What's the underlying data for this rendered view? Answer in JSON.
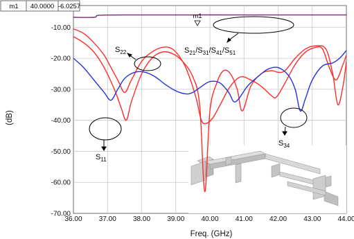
{
  "chart_data": {
    "type": "line",
    "xlabel": "Freq. (GHz)",
    "ylabel": "(dB)",
    "xlim": [
      36,
      44
    ],
    "ylim": [
      -70,
      -3
    ],
    "xticks": [
      "36.00",
      "37.00",
      "38.00",
      "39.00",
      "40.00",
      "41.00",
      "42.00",
      "43.00",
      "44.00"
    ],
    "yticks": [
      "-10.00",
      "-20.00",
      "-30.00",
      "-40.00",
      "-50.00",
      "-60.00",
      "-70.00"
    ],
    "ytick_values": [
      -10,
      -20,
      -30,
      -40,
      -50,
      -60,
      -70
    ],
    "grid": true,
    "marker": {
      "name": "m1",
      "x": "40.0000",
      "y": "-6.0257",
      "x_value": 40.0,
      "y_value": -6.0257
    },
    "series": [
      {
        "color": "#ff2a2a",
        "x": [
          36.0,
          36.3,
          36.6,
          36.9,
          37.2,
          37.4,
          37.55,
          37.7,
          38.0,
          38.3,
          38.6,
          38.9,
          39.2,
          39.5,
          39.7,
          39.85,
          40.0,
          40.2,
          40.4,
          40.6,
          40.8,
          40.95,
          41.2,
          41.5,
          41.8,
          42.0,
          42.2,
          42.5,
          42.8,
          43.1,
          43.4,
          43.6,
          43.75,
          43.9,
          44.0
        ],
        "y": [
          -13,
          -15,
          -18,
          -23,
          -30,
          -36,
          -40,
          -34,
          -25,
          -20,
          -18,
          -18.5,
          -21,
          -26,
          -35,
          -63,
          -37,
          -28,
          -24,
          -25,
          -30,
          -37,
          -29,
          -25,
          -24,
          -24.5,
          -24,
          -20,
          -17,
          -16,
          -17,
          -25,
          -35,
          -29,
          -21
        ]
      },
      {
        "color": "#ff2a2a",
        "x": [
          36.0,
          36.3,
          36.6,
          36.9,
          37.1,
          37.3,
          37.5,
          37.7,
          38.0,
          38.3,
          38.6,
          38.9,
          39.2,
          39.4,
          39.6,
          39.75,
          39.9,
          40.1,
          40.3,
          40.6,
          40.9,
          41.2,
          41.5,
          41.8,
          41.95,
          42.2,
          42.5,
          42.8,
          43.1,
          43.3,
          43.5,
          43.7,
          43.9,
          44.0
        ],
        "y": [
          -10.5,
          -12,
          -15,
          -19,
          -23,
          -27,
          -31,
          -27,
          -21,
          -18,
          -16.5,
          -17,
          -21,
          -26,
          -33,
          -40,
          -41,
          -39,
          -35,
          -29,
          -26,
          -27,
          -29,
          -32,
          -32.5,
          -28,
          -22,
          -18,
          -16.5,
          -17,
          -23,
          -27,
          -22,
          -19
        ]
      },
      {
        "color": "#2233dd",
        "x": [
          36.0,
          36.3,
          36.6,
          36.9,
          37.1,
          37.3,
          37.5,
          37.8,
          38.1,
          38.4,
          38.7,
          39.0,
          39.3,
          39.5,
          39.7,
          40.0,
          40.3,
          40.55,
          40.7,
          40.85,
          41.1,
          41.4,
          41.7,
          42.0,
          42.3,
          42.5,
          42.65,
          42.8,
          43.0,
          43.3,
          43.6,
          43.8,
          44.0
        ],
        "y": [
          -20,
          -23,
          -27,
          -31,
          -33.5,
          -30,
          -26.5,
          -24.5,
          -24.5,
          -26,
          -28.5,
          -30.5,
          -31.5,
          -31,
          -29.5,
          -27.5,
          -28,
          -31,
          -34,
          -33,
          -29,
          -26,
          -23.5,
          -23,
          -25.5,
          -30,
          -37,
          -33,
          -27,
          -22.5,
          -21.5,
          -20,
          -17.5
        ]
      },
      {
        "color": "#7a2a70",
        "x": [
          36.0,
          36.6,
          36.7,
          37.0,
          38.0,
          39.0,
          40.0,
          41.0,
          42.0,
          43.0,
          44.0
        ],
        "y": [
          -6.8,
          -6.8,
          -6.2,
          -6.05,
          -6.03,
          -6.03,
          -6.0257,
          -6.03,
          -6.03,
          -6.03,
          -6.03
        ]
      }
    ],
    "annotations": [
      {
        "base": "S",
        "sub": "22"
      },
      {
        "parts": [
          {
            "base": "S",
            "sub": "21"
          },
          {
            "base": "/S",
            "sub": "31"
          },
          {
            "base": "/S",
            "sub": "41"
          },
          {
            "base": "/S",
            "sub": "51"
          }
        ]
      },
      {
        "base": "S",
        "sub": "11"
      },
      {
        "base": "S",
        "sub": "34"
      }
    ]
  }
}
